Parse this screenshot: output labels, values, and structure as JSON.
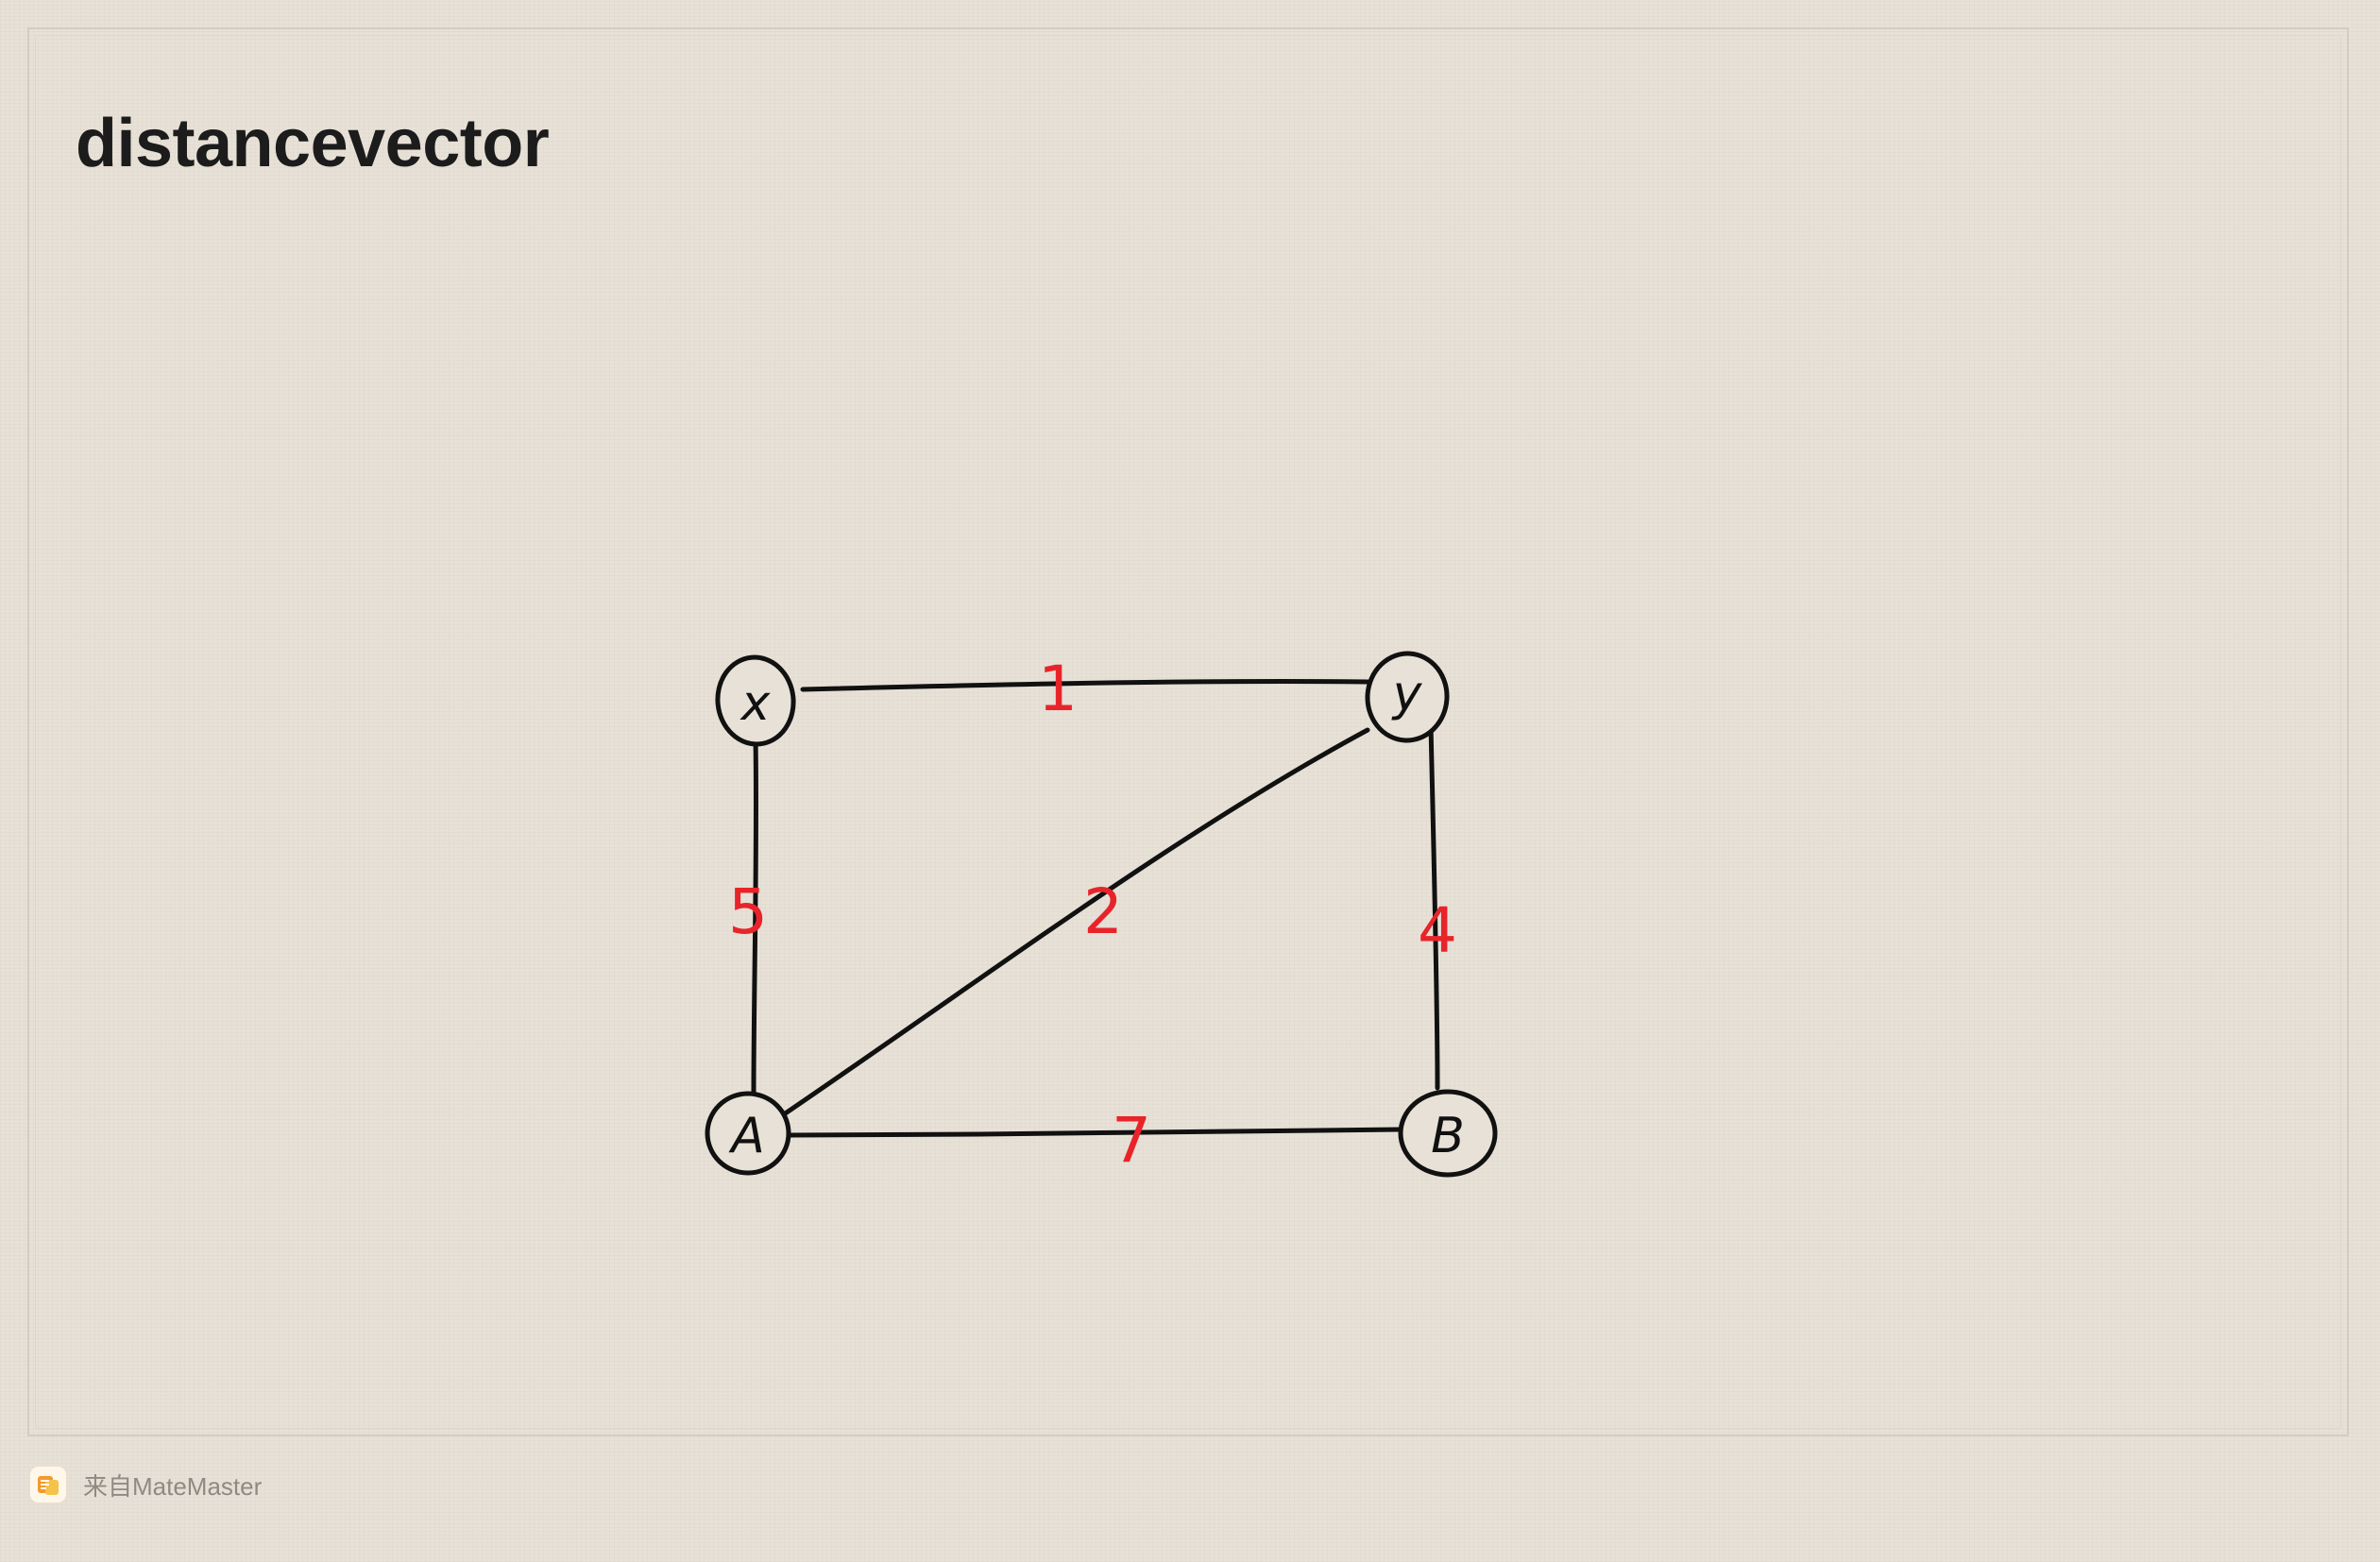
{
  "page": {
    "title": "distancevector"
  },
  "diagram": {
    "nodes": [
      {
        "id": "x",
        "label": "x"
      },
      {
        "id": "y",
        "label": "y"
      },
      {
        "id": "A",
        "label": "A"
      },
      {
        "id": "B",
        "label": "B"
      }
    ],
    "edges": [
      {
        "from": "x",
        "to": "y",
        "weight": "1"
      },
      {
        "from": "x",
        "to": "A",
        "weight": "5"
      },
      {
        "from": "y",
        "to": "A",
        "weight": "2"
      },
      {
        "from": "y",
        "to": "B",
        "weight": "4"
      },
      {
        "from": "A",
        "to": "B",
        "weight": "7"
      }
    ],
    "line_color": "#111111",
    "weight_color": "#e8242a"
  },
  "footer": {
    "source_text": "来自MateMaster",
    "icon": "matemaster-app-icon"
  }
}
